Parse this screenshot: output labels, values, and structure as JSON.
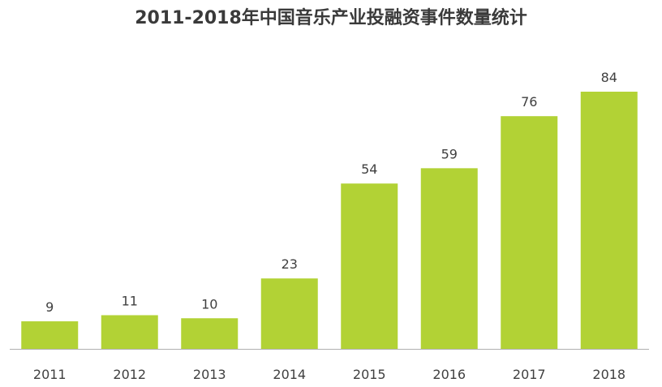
{
  "chart_data": {
    "type": "bar",
    "title": "2011-2018年中国音乐产业投融资事件数量统计",
    "categories": [
      "2011",
      "2012",
      "2013",
      "2014",
      "2015",
      "2016",
      "2017",
      "2018"
    ],
    "values": [
      9,
      11,
      10,
      23,
      54,
      59,
      76,
      84
    ],
    "xlabel": "",
    "ylabel": "",
    "ylim": [
      0,
      84
    ],
    "grid": false,
    "legend": "none",
    "bar_color": "#b2d235",
    "axis_color": "#b0b0b0"
  }
}
